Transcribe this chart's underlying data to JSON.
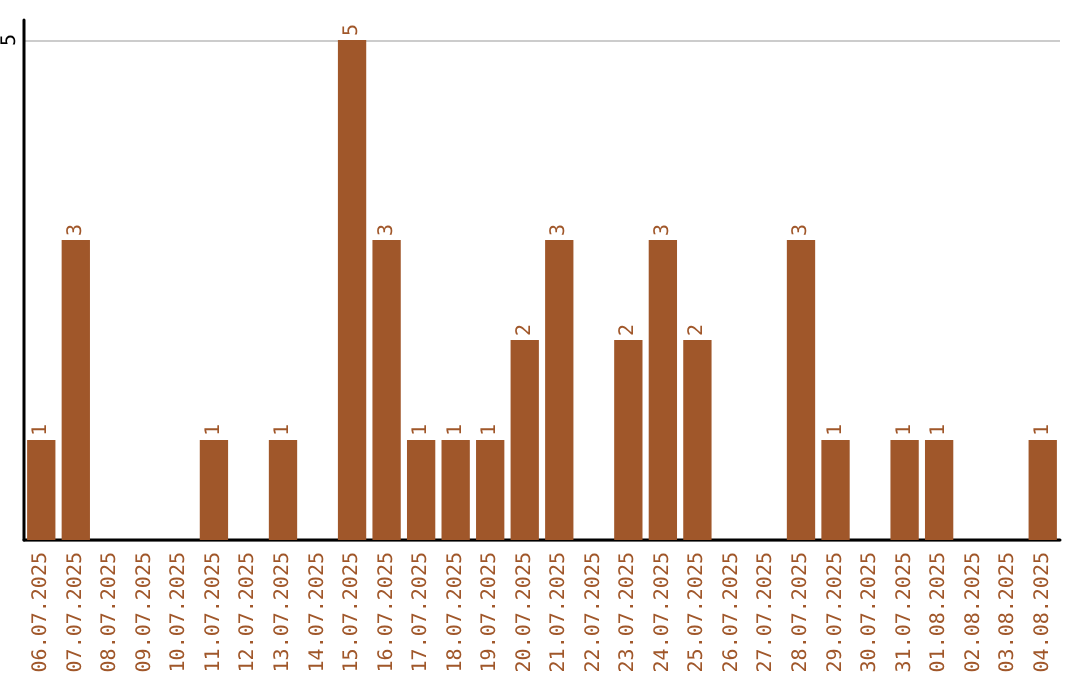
{
  "chart_data": {
    "type": "bar",
    "categories": [
      "06.07.2025",
      "07.07.2025",
      "08.07.2025",
      "09.07.2025",
      "10.07.2025",
      "11.07.2025",
      "12.07.2025",
      "13.07.2025",
      "14.07.2025",
      "15.07.2025",
      "16.07.2025",
      "17.07.2025",
      "18.07.2025",
      "19.07.2025",
      "20.07.2025",
      "21.07.2025",
      "22.07.2025",
      "23.07.2025",
      "24.07.2025",
      "25.07.2025",
      "26.07.2025",
      "27.07.2025",
      "28.07.2025",
      "29.07.2025",
      "30.07.2025",
      "31.07.2025",
      "01.08.2025",
      "02.08.2025",
      "03.08.2025",
      "04.08.2025"
    ],
    "values": [
      1,
      3,
      0,
      0,
      0,
      1,
      0,
      1,
      0,
      5,
      3,
      1,
      1,
      1,
      2,
      3,
      0,
      2,
      3,
      2,
      0,
      0,
      3,
      1,
      0,
      1,
      1,
      0,
      0,
      1
    ],
    "value_labels": [
      "1",
      "3",
      null,
      null,
      null,
      "1",
      null,
      "1",
      null,
      "5",
      "3",
      "1",
      "1",
      "1",
      "2",
      "3",
      null,
      "2",
      "3",
      "2",
      null,
      null,
      "3",
      "1",
      null,
      "1",
      "1",
      null,
      null,
      "1"
    ],
    "color": "#a0572a",
    "ylim": [
      0,
      5.2
    ],
    "yticks": [
      {
        "value": 0,
        "label": null
      },
      5
    ],
    "grid": "y"
  }
}
